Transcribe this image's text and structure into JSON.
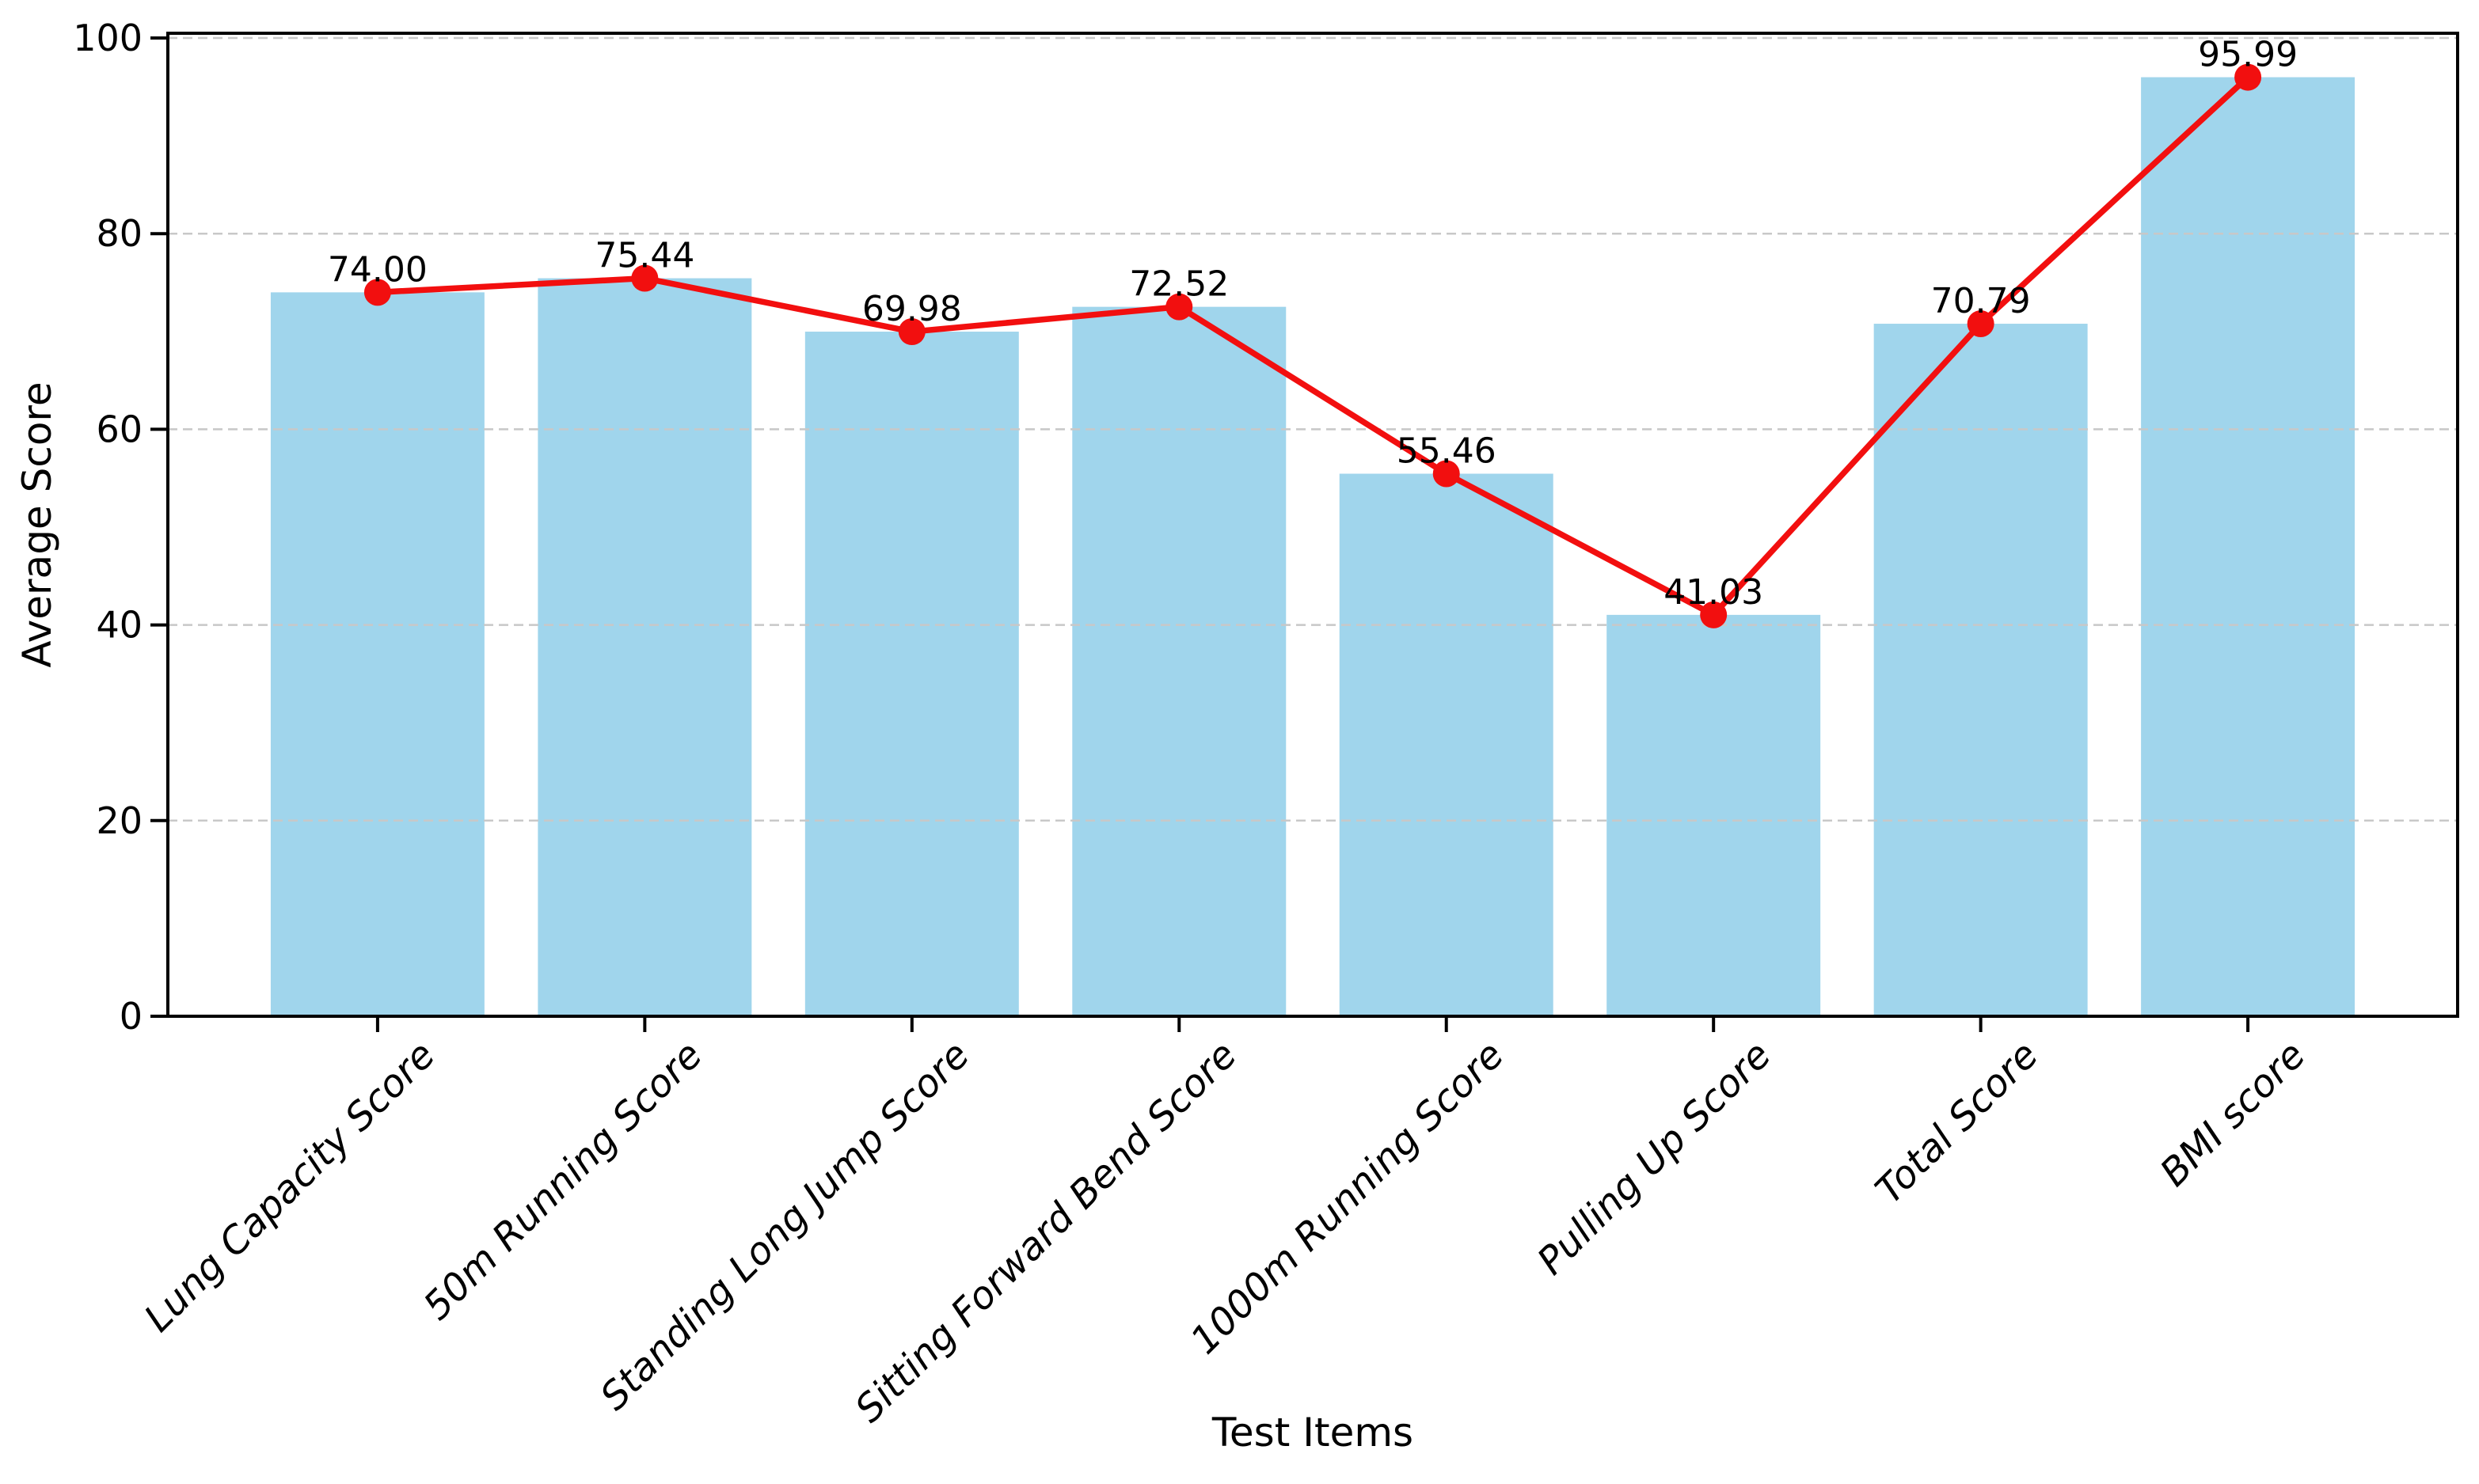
{
  "figure": {
    "background": "#ffffff"
  },
  "chart_data": {
    "type": "bar",
    "subtype": "bar-with-line-overlay",
    "title": "",
    "xlabel": "Test Items",
    "ylabel": "Average Score",
    "categories": [
      "Lung Capacity Score",
      "50m Running Score",
      "Standing Long Jump Score",
      "Sitting Forward Bend Score",
      "1000m Running Score",
      "Pulling Up Score",
      "Total Score",
      "BMI score"
    ],
    "series": [
      {
        "name": "Average Score bars",
        "type": "bar",
        "color": "#a0d5ec",
        "values": [
          74.0,
          75.44,
          69.98,
          72.52,
          55.46,
          41.03,
          70.79,
          95.99
        ]
      },
      {
        "name": "Average Score line",
        "type": "line",
        "color": "#f20f0f",
        "marker": "circle",
        "values": [
          74.0,
          75.44,
          69.98,
          72.52,
          55.46,
          41.03,
          70.79,
          95.99
        ]
      }
    ],
    "value_labels": [
      "74.00",
      "75.44",
      "69.98",
      "72.52",
      "55.46",
      "41.03",
      "70.79",
      "95.99"
    ],
    "yticks": [
      "0",
      "20",
      "40",
      "60",
      "80",
      "100"
    ],
    "ylim": [
      0,
      100
    ],
    "grid": {
      "axis": "y",
      "style": "dashed",
      "color": "#c8c8c8"
    },
    "legend": "none",
    "colors": {
      "axis": "#000000",
      "text": "#000000",
      "bar": "#a0d5ec",
      "line": "#f20f0f",
      "grid": "#c8c8c8"
    }
  }
}
